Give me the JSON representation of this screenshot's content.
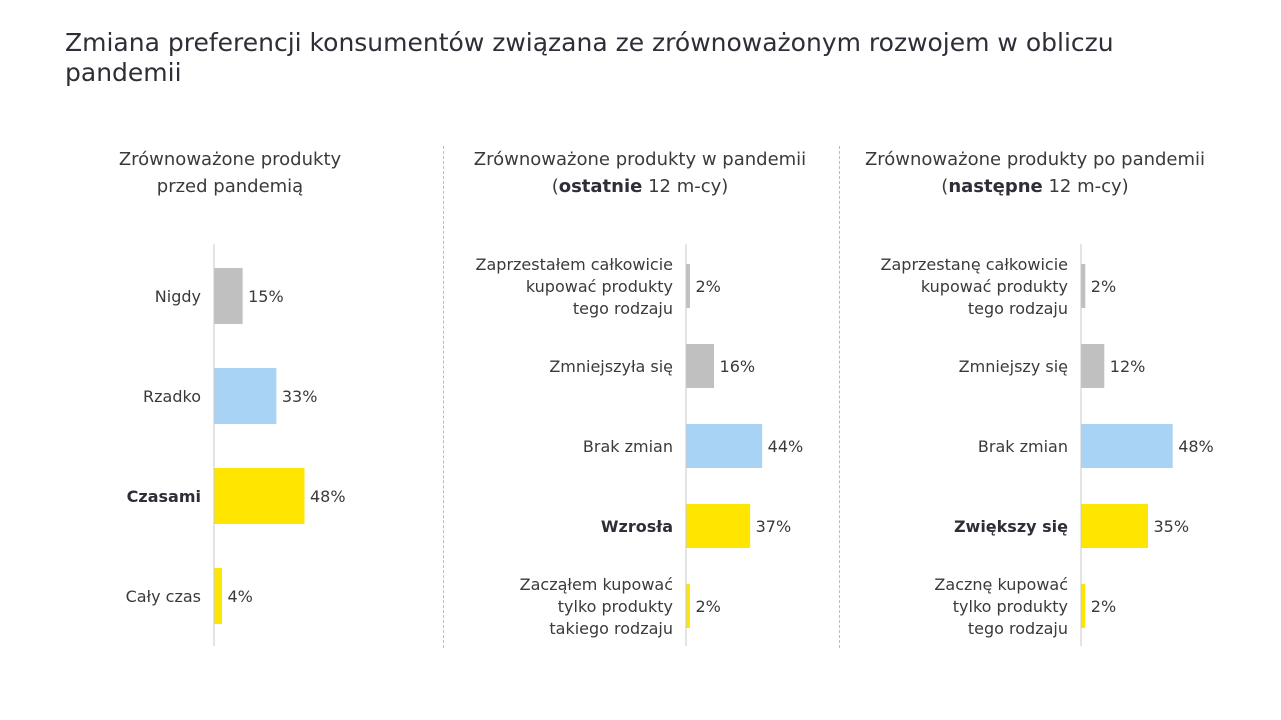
{
  "title": "Zmiana preferencji konsumentów związana ze zrównoważonym rozwojem w obliczu pandemii",
  "colors": {
    "gray": "#c0c0c0",
    "blue": "#a8d3f4",
    "yellow": "#ffe600",
    "axis": "#c8c8c8"
  },
  "panels": [
    {
      "title_line1": "Zrównoważone produkty",
      "title_bold": "",
      "title_line2": "przed pandemią"
    },
    {
      "title_line1": "Zrównoważone produkty w pandemii",
      "title_bold": "ostatnie",
      "title_line2": " 12 m-cy)"
    },
    {
      "title_line1": "Zrównoważone produkty po pandemii",
      "title_bold": "następne",
      "title_line2": " 12 m-cy)"
    }
  ],
  "chart_data": [
    {
      "type": "bar",
      "orientation": "horizontal",
      "title": "Zrównoważone produkty przed pandemią",
      "categories": [
        "Nigdy",
        "Rzadko",
        "Czasami",
        "Cały czas"
      ],
      "values": [
        15,
        33,
        48,
        4
      ],
      "value_labels": [
        "15%",
        "33%",
        "48%",
        "4%"
      ],
      "bar_colors": [
        "gray",
        "blue",
        "yellow",
        "yellow"
      ],
      "bold_category": "Czasami",
      "xlim": [
        0,
        100
      ],
      "unit": "%"
    },
    {
      "type": "bar",
      "orientation": "horizontal",
      "title": "Zrównoważone produkty w pandemii (ostatnie 12 m-cy)",
      "categories": [
        [
          "Zaprzestałem całkowicie",
          "kupować produkty",
          "tego rodzaju"
        ],
        [
          "Zmniejszyła się"
        ],
        [
          "Brak zmian"
        ],
        [
          "Wzrosła"
        ],
        [
          "Zacząłem kupować",
          "tylko produkty",
          "takiego rodzaju"
        ]
      ],
      "values": [
        2,
        16,
        44,
        37,
        2
      ],
      "value_labels": [
        "2%",
        "16%",
        "44%",
        "37%",
        "2%"
      ],
      "bar_colors": [
        "gray",
        "gray",
        "blue",
        "yellow",
        "yellow"
      ],
      "bold_category": "Wzrosła",
      "xlim": [
        0,
        100
      ],
      "unit": "%"
    },
    {
      "type": "bar",
      "orientation": "horizontal",
      "title": "Zrównoważone produkty po pandemii (następne 12 m-cy)",
      "categories": [
        [
          "Zaprzestanę całkowicie",
          "kupować produkty",
          "tego rodzaju"
        ],
        [
          "Zmniejszy się"
        ],
        [
          "Brak zmian"
        ],
        [
          "Zwiększy się"
        ],
        [
          "Zacznę kupować",
          "tylko produkty",
          "tego rodzaju"
        ]
      ],
      "values": [
        2,
        12,
        48,
        35,
        2
      ],
      "value_labels": [
        "2%",
        "12%",
        "48%",
        "35%",
        "2%"
      ],
      "bar_colors": [
        "gray",
        "gray",
        "blue",
        "yellow",
        "yellow"
      ],
      "bold_category": "Zwiększy się",
      "xlim": [
        0,
        100
      ],
      "unit": "%"
    }
  ]
}
